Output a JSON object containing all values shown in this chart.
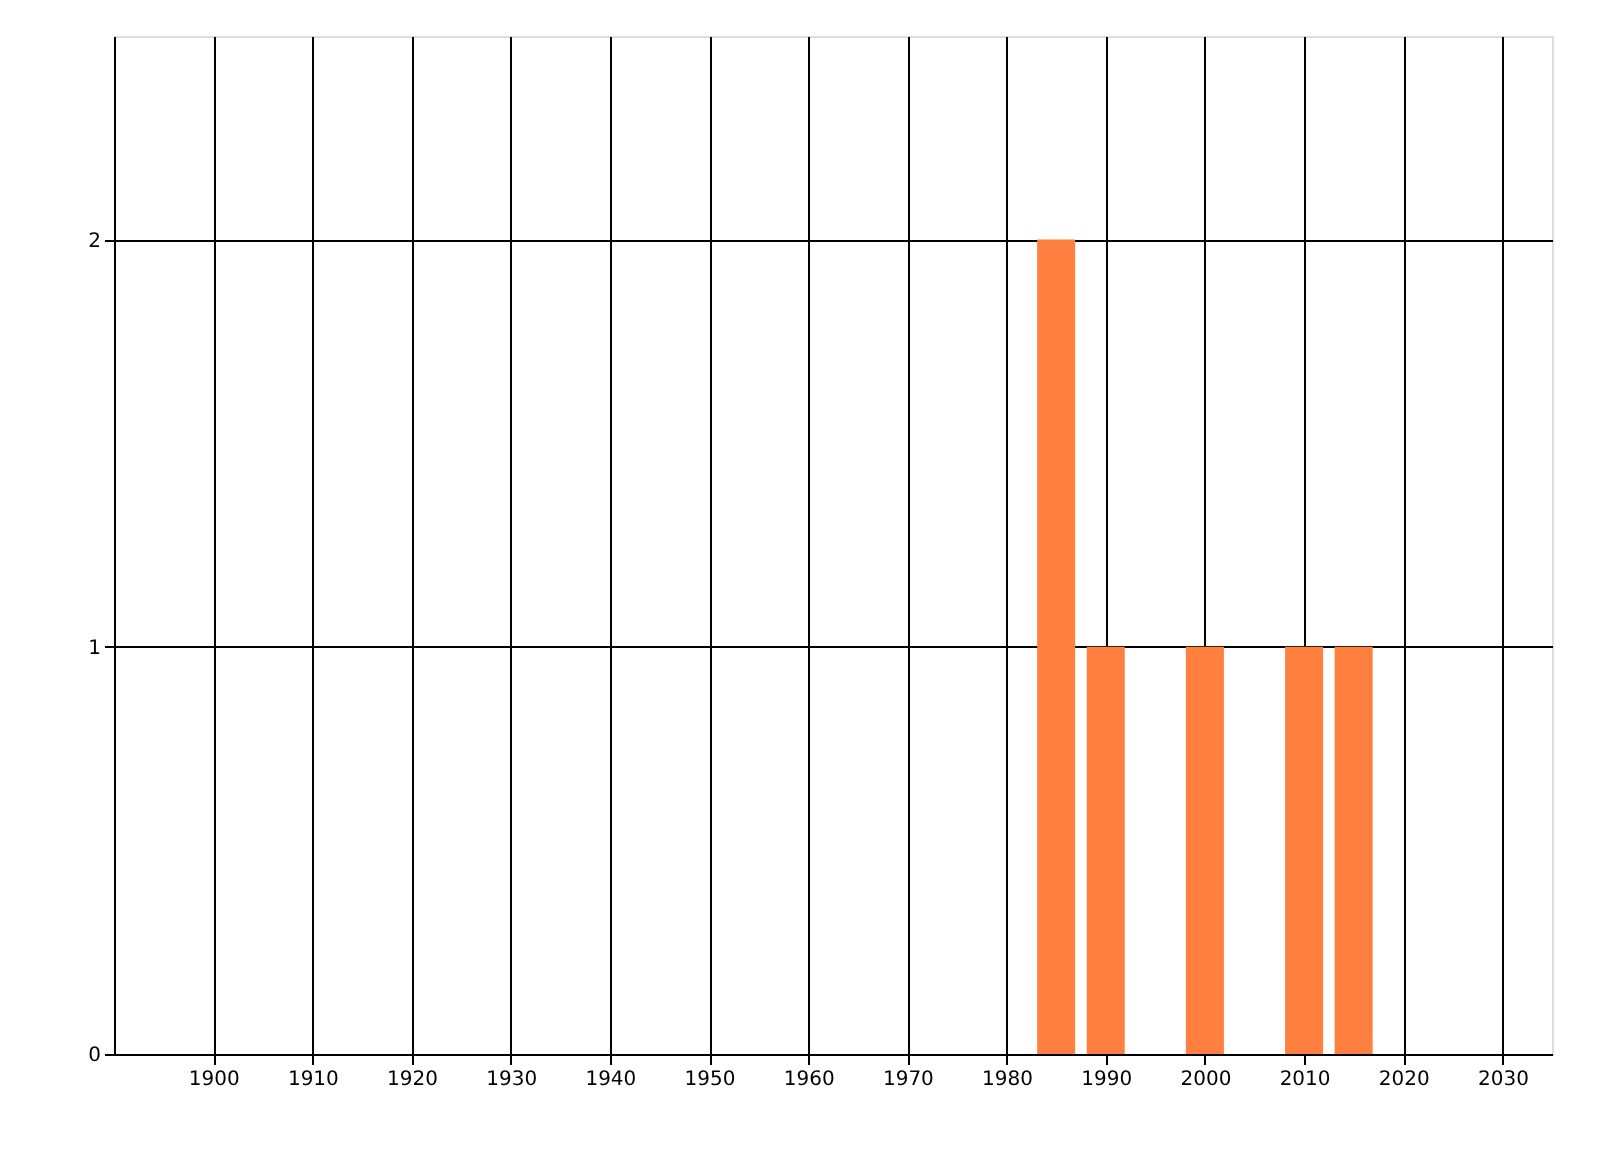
{
  "chart_data": {
    "type": "bar",
    "x": [
      1985,
      1990,
      2000,
      2010,
      2015
    ],
    "values": [
      2,
      1,
      1,
      1,
      1
    ],
    "color": "#ff7f3f",
    "xlim": [
      1890,
      2035
    ],
    "xticks": [
      1900,
      1910,
      1920,
      1930,
      1940,
      1950,
      1960,
      1970,
      1980,
      1990,
      2000,
      2010,
      2020,
      2030
    ],
    "ylim": [
      0,
      2.5
    ],
    "yticks": [
      0,
      1,
      2
    ],
    "grid": true
  }
}
